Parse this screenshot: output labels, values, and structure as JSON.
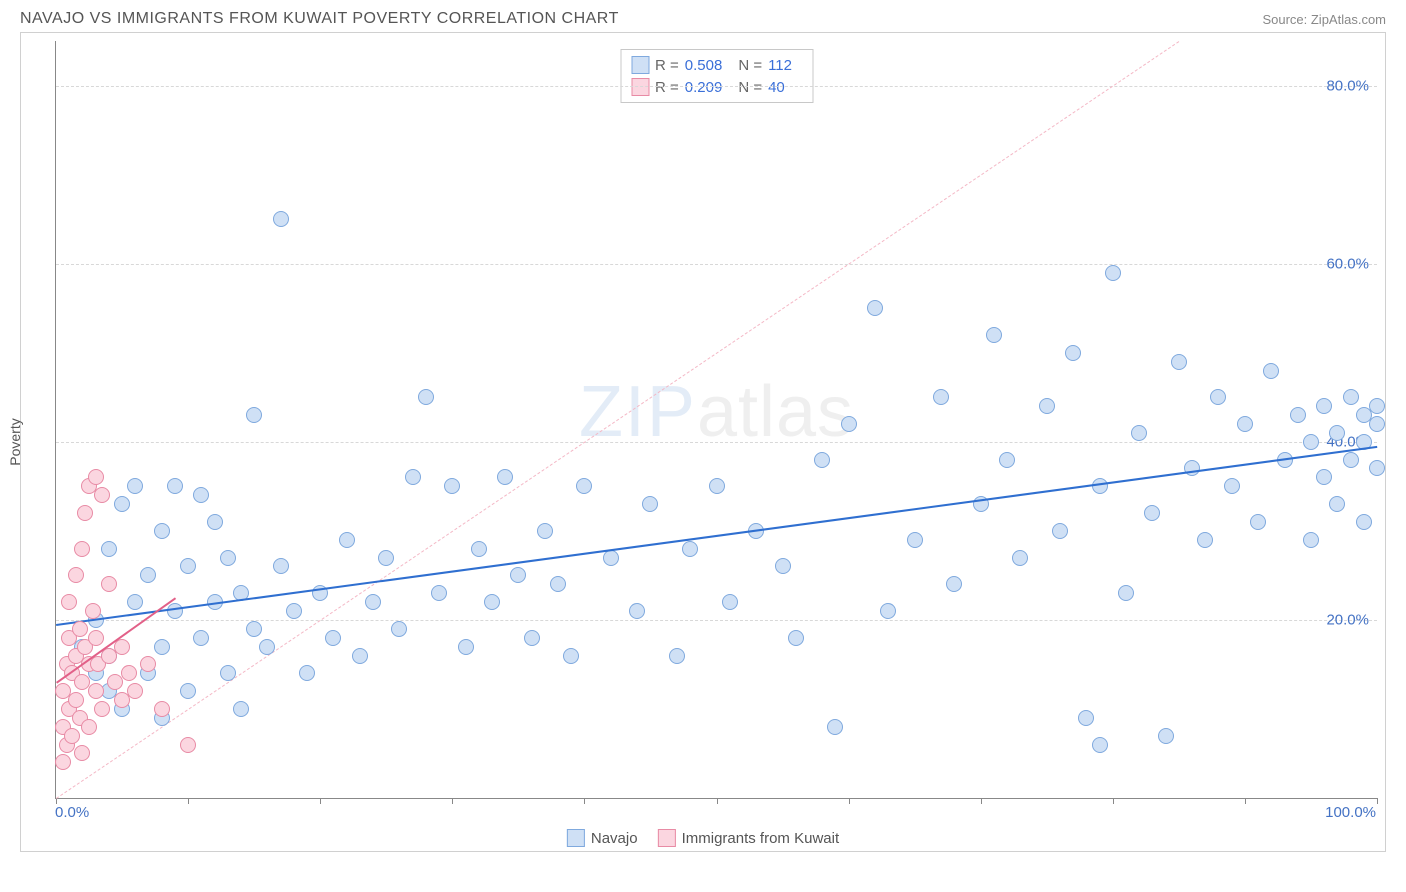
{
  "header": {
    "title": "NAVAJO VS IMMIGRANTS FROM KUWAIT POVERTY CORRELATION CHART",
    "source": "Source: ZipAtlas.com"
  },
  "y_axis_label": "Poverty",
  "watermark": {
    "zip": "ZIP",
    "atlas": "atlas"
  },
  "chart": {
    "type": "scatter",
    "x_range": [
      0,
      100
    ],
    "y_range": [
      0,
      85
    ],
    "x_ticks": [
      0,
      10,
      20,
      30,
      40,
      50,
      60,
      70,
      80,
      90,
      100
    ],
    "x_tick_labels": {
      "0": "0.0%",
      "100": "100.0%"
    },
    "y_gridlines": [
      20,
      40,
      60,
      80
    ],
    "y_tick_labels": [
      "20.0%",
      "40.0%",
      "60.0%",
      "80.0%"
    ],
    "grid_color": "#d8d8d8",
    "background_color": "#ffffff",
    "series": [
      {
        "name": "Navajo",
        "fill": "#cfe0f5",
        "stroke": "#7fa9de",
        "r_value": "0.508",
        "n_value": "112",
        "trend": {
          "x1": 0,
          "y1": 19.5,
          "x2": 100,
          "y2": 39.5,
          "color": "#2f6fd0",
          "width": 2.5,
          "dash": "solid"
        },
        "identity_line": {
          "x1": 0,
          "y1": 0,
          "x2": 85,
          "y2": 85,
          "color": "#f4b8c6",
          "width": 1.2,
          "dash": "dashed"
        },
        "points": [
          [
            2,
            17
          ],
          [
            3,
            14
          ],
          [
            3,
            20
          ],
          [
            4,
            12
          ],
          [
            4,
            16
          ],
          [
            4,
            28
          ],
          [
            5,
            10
          ],
          [
            5,
            33
          ],
          [
            6,
            22
          ],
          [
            6,
            35
          ],
          [
            7,
            14
          ],
          [
            7,
            25
          ],
          [
            8,
            9
          ],
          [
            8,
            17
          ],
          [
            8,
            30
          ],
          [
            9,
            21
          ],
          [
            9,
            35
          ],
          [
            10,
            12
          ],
          [
            10,
            26
          ],
          [
            11,
            18
          ],
          [
            11,
            34
          ],
          [
            12,
            22
          ],
          [
            12,
            31
          ],
          [
            13,
            14
          ],
          [
            13,
            27
          ],
          [
            14,
            10
          ],
          [
            14,
            23
          ],
          [
            15,
            19
          ],
          [
            15,
            43
          ],
          [
            16,
            17
          ],
          [
            17,
            26
          ],
          [
            17,
            65
          ],
          [
            18,
            21
          ],
          [
            19,
            14
          ],
          [
            20,
            23
          ],
          [
            21,
            18
          ],
          [
            22,
            29
          ],
          [
            23,
            16
          ],
          [
            24,
            22
          ],
          [
            25,
            27
          ],
          [
            26,
            19
          ],
          [
            27,
            36
          ],
          [
            28,
            45
          ],
          [
            29,
            23
          ],
          [
            30,
            35
          ],
          [
            31,
            17
          ],
          [
            32,
            28
          ],
          [
            33,
            22
          ],
          [
            34,
            36
          ],
          [
            35,
            25
          ],
          [
            36,
            18
          ],
          [
            37,
            30
          ],
          [
            38,
            24
          ],
          [
            39,
            16
          ],
          [
            40,
            35
          ],
          [
            42,
            27
          ],
          [
            44,
            21
          ],
          [
            45,
            33
          ],
          [
            47,
            16
          ],
          [
            48,
            28
          ],
          [
            50,
            35
          ],
          [
            51,
            22
          ],
          [
            53,
            30
          ],
          [
            55,
            26
          ],
          [
            56,
            18
          ],
          [
            58,
            38
          ],
          [
            59,
            8
          ],
          [
            60,
            42
          ],
          [
            62,
            55
          ],
          [
            63,
            21
          ],
          [
            65,
            29
          ],
          [
            67,
            45
          ],
          [
            68,
            24
          ],
          [
            70,
            33
          ],
          [
            71,
            52
          ],
          [
            72,
            38
          ],
          [
            73,
            27
          ],
          [
            75,
            44
          ],
          [
            76,
            30
          ],
          [
            77,
            50
          ],
          [
            78,
            9
          ],
          [
            79,
            6
          ],
          [
            79,
            35
          ],
          [
            80,
            59
          ],
          [
            81,
            23
          ],
          [
            82,
            41
          ],
          [
            83,
            32
          ],
          [
            84,
            7
          ],
          [
            85,
            49
          ],
          [
            86,
            37
          ],
          [
            87,
            29
          ],
          [
            88,
            45
          ],
          [
            89,
            35
          ],
          [
            90,
            42
          ],
          [
            91,
            31
          ],
          [
            92,
            48
          ],
          [
            93,
            38
          ],
          [
            94,
            43
          ],
          [
            95,
            29
          ],
          [
            95,
            40
          ],
          [
            96,
            36
          ],
          [
            96,
            44
          ],
          [
            97,
            33
          ],
          [
            97,
            41
          ],
          [
            98,
            38
          ],
          [
            98,
            45
          ],
          [
            99,
            31
          ],
          [
            99,
            43
          ],
          [
            99,
            40
          ],
          [
            100,
            37
          ],
          [
            100,
            44
          ],
          [
            100,
            42
          ]
        ]
      },
      {
        "name": "Immigrants from Kuwait",
        "fill": "#fbd6e0",
        "stroke": "#e88ba5",
        "r_value": "0.209",
        "n_value": "40",
        "trend": {
          "x1": 0,
          "y1": 13,
          "x2": 9,
          "y2": 22.5,
          "color": "#e26088",
          "width": 2,
          "dash": "solid"
        },
        "points": [
          [
            0.5,
            4
          ],
          [
            0.5,
            8
          ],
          [
            0.5,
            12
          ],
          [
            0.8,
            15
          ],
          [
            0.8,
            6
          ],
          [
            1,
            18
          ],
          [
            1,
            10
          ],
          [
            1,
            22
          ],
          [
            1.2,
            14
          ],
          [
            1.2,
            7
          ],
          [
            1.5,
            16
          ],
          [
            1.5,
            25
          ],
          [
            1.5,
            11
          ],
          [
            1.8,
            9
          ],
          [
            1.8,
            19
          ],
          [
            2,
            13
          ],
          [
            2,
            28
          ],
          [
            2,
            5
          ],
          [
            2.2,
            17
          ],
          [
            2.2,
            32
          ],
          [
            2.5,
            15
          ],
          [
            2.5,
            35
          ],
          [
            2.5,
            8
          ],
          [
            2.8,
            21
          ],
          [
            3,
            12
          ],
          [
            3,
            36
          ],
          [
            3,
            18
          ],
          [
            3.2,
            15
          ],
          [
            3.5,
            34
          ],
          [
            3.5,
            10
          ],
          [
            4,
            16
          ],
          [
            4,
            24
          ],
          [
            4.5,
            13
          ],
          [
            5,
            11
          ],
          [
            5,
            17
          ],
          [
            5.5,
            14
          ],
          [
            6,
            12
          ],
          [
            7,
            15
          ],
          [
            8,
            10
          ],
          [
            10,
            6
          ]
        ]
      }
    ]
  },
  "colors": {
    "title": "#555555",
    "source": "#888888",
    "axis_text": "#4472c4",
    "stat_label": "#666666",
    "stat_value": "#3a6fd8"
  }
}
